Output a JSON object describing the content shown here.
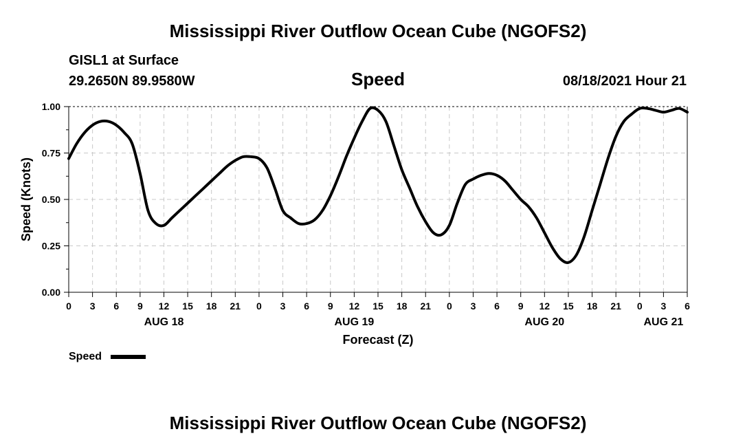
{
  "page_title": "Mississippi River Outflow Ocean Cube (NGOFS2)",
  "footer_title": "Mississippi River Outflow Ocean Cube (NGOFS2)",
  "station": {
    "name": "GISL1 at Surface",
    "coords": "29.2650N  89.9580W"
  },
  "variable": "Speed",
  "timestamp": "08/18/2021 Hour 21",
  "legend": {
    "label": "Speed",
    "color": "#000000"
  },
  "chart_data": {
    "type": "line",
    "title": "Speed",
    "xlabel": "Forecast (Z)",
    "ylabel": "Speed (Knots)",
    "xlim": [
      0,
      78
    ],
    "ylim": [
      0,
      1
    ],
    "grid": true,
    "yticks": [
      {
        "value": 0,
        "label": "0.00"
      },
      {
        "value": 0.25,
        "label": "0.25"
      },
      {
        "value": 0.5,
        "label": "0.50"
      },
      {
        "value": 0.75,
        "label": "0.75"
      },
      {
        "value": 1,
        "label": "1.00"
      }
    ],
    "xticks": [
      {
        "value": 0,
        "label": "0"
      },
      {
        "value": 3,
        "label": "3"
      },
      {
        "value": 6,
        "label": "6"
      },
      {
        "value": 9,
        "label": "9"
      },
      {
        "value": 12,
        "label": "12"
      },
      {
        "value": 15,
        "label": "15"
      },
      {
        "value": 18,
        "label": "18"
      },
      {
        "value": 21,
        "label": "21"
      },
      {
        "value": 24,
        "label": "0"
      },
      {
        "value": 27,
        "label": "3"
      },
      {
        "value": 30,
        "label": "6"
      },
      {
        "value": 33,
        "label": "9"
      },
      {
        "value": 36,
        "label": "12"
      },
      {
        "value": 39,
        "label": "15"
      },
      {
        "value": 42,
        "label": "18"
      },
      {
        "value": 45,
        "label": "21"
      },
      {
        "value": 48,
        "label": "0"
      },
      {
        "value": 51,
        "label": "3"
      },
      {
        "value": 54,
        "label": "6"
      },
      {
        "value": 57,
        "label": "9"
      },
      {
        "value": 60,
        "label": "12"
      },
      {
        "value": 63,
        "label": "15"
      },
      {
        "value": 66,
        "label": "18"
      },
      {
        "value": 69,
        "label": "21"
      },
      {
        "value": 72,
        "label": "0"
      },
      {
        "value": 75,
        "label": "3"
      },
      {
        "value": 78,
        "label": "6"
      }
    ],
    "date_labels": [
      {
        "value": 12,
        "label": "AUG 18"
      },
      {
        "value": 36,
        "label": "AUG 19"
      },
      {
        "value": 60,
        "label": "AUG 20"
      },
      {
        "value": 75,
        "label": "AUG 21"
      }
    ],
    "series": [
      {
        "name": "Speed",
        "color": "#000000",
        "x": [
          0,
          1,
          2,
          3,
          4,
          5,
          6,
          7,
          8,
          9,
          10,
          11,
          12,
          13,
          14,
          15,
          16,
          17,
          18,
          19,
          20,
          21,
          22,
          23,
          24,
          25,
          26,
          27,
          28,
          29,
          30,
          31,
          32,
          33,
          34,
          35,
          36,
          37,
          38,
          39,
          40,
          41,
          42,
          43,
          44,
          45,
          46,
          47,
          48,
          49,
          50,
          51,
          52,
          53,
          54,
          55,
          56,
          57,
          58,
          59,
          60,
          61,
          62,
          63,
          64,
          65,
          66,
          67,
          68,
          69,
          70,
          71,
          72,
          73,
          74,
          75,
          76,
          77,
          78
        ],
        "values": [
          0.72,
          0.8,
          0.86,
          0.9,
          0.92,
          0.92,
          0.9,
          0.86,
          0.8,
          0.64,
          0.44,
          0.37,
          0.36,
          0.4,
          0.44,
          0.48,
          0.52,
          0.56,
          0.6,
          0.64,
          0.68,
          0.71,
          0.73,
          0.73,
          0.72,
          0.67,
          0.56,
          0.44,
          0.4,
          0.37,
          0.37,
          0.39,
          0.44,
          0.52,
          0.62,
          0.73,
          0.83,
          0.92,
          0.99,
          0.98,
          0.92,
          0.79,
          0.66,
          0.56,
          0.46,
          0.38,
          0.32,
          0.31,
          0.36,
          0.48,
          0.58,
          0.61,
          0.63,
          0.64,
          0.63,
          0.6,
          0.55,
          0.5,
          0.46,
          0.4,
          0.32,
          0.24,
          0.18,
          0.16,
          0.2,
          0.3,
          0.44,
          0.58,
          0.72,
          0.84,
          0.92,
          0.96,
          0.99,
          0.99,
          0.98,
          0.97,
          0.98,
          0.99,
          0.97
        ]
      }
    ]
  }
}
